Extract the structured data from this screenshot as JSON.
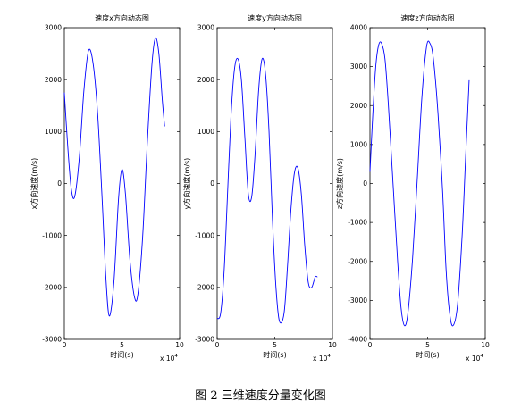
{
  "caption": "图 2  三维速度分量变化图",
  "colors": {
    "line": "#0000ff",
    "axes": "#000000",
    "background": "#ffffff"
  },
  "chart_data": [
    {
      "type": "line",
      "title": "速度x方向动态图",
      "xlabel": "时间(s)",
      "ylabel": "x方向速度(m/s)",
      "x_exponent": "x 10",
      "x_exponent_power": "4",
      "xlim": [
        0,
        10
      ],
      "ylim": [
        -3000,
        3000
      ],
      "xticks": [
        0,
        5,
        10
      ],
      "yticks": [
        -3000,
        -2000,
        -1000,
        0,
        1000,
        2000,
        3000
      ],
      "grid": false,
      "series": [
        {
          "x": [
            0,
            0.3,
            0.6,
            0.9,
            1.3,
            1.7,
            2.1,
            2.5,
            2.9,
            3.3,
            3.6,
            3.9,
            4.3,
            4.7,
            5.0,
            5.3,
            5.7,
            6.1,
            6.4,
            6.8,
            7.2,
            7.6,
            7.9,
            8.2,
            8.5,
            8.7
          ],
          "y": [
            1750,
            700,
            -100,
            -250,
            500,
            1800,
            2560,
            2300,
            1300,
            -400,
            -1800,
            -2550,
            -1900,
            -300,
            270,
            -200,
            -1500,
            -2200,
            -2100,
            -1000,
            800,
            2300,
            2800,
            2500,
            1600,
            1100
          ]
        }
      ]
    },
    {
      "type": "line",
      "title": "速度y方向动态图",
      "xlabel": "时间(s)",
      "ylabel": "y方向速度(m/s)",
      "x_exponent": "x 10",
      "x_exponent_power": "4",
      "xlim": [
        0,
        10
      ],
      "ylim": [
        -3000,
        3000
      ],
      "xticks": [
        0,
        5,
        10
      ],
      "yticks": [
        -3000,
        -2000,
        -1000,
        0,
        1000,
        2000,
        3000
      ],
      "grid": false,
      "series": [
        {
          "x": [
            0,
            0.3,
            0.6,
            0.9,
            1.2,
            1.5,
            1.8,
            2.1,
            2.4,
            2.7,
            3.0,
            3.3,
            3.6,
            3.9,
            4.2,
            4.5,
            4.8,
            5.1,
            5.4,
            5.8,
            6.1,
            6.4,
            6.7,
            7.0,
            7.3,
            7.6,
            7.9,
            8.2,
            8.5,
            8.7
          ],
          "y": [
            -2600,
            -2500,
            -1700,
            -200,
            1300,
            2200,
            2400,
            2000,
            900,
            -200,
            -250,
            600,
            1800,
            2400,
            2100,
            1000,
            -700,
            -2000,
            -2650,
            -2500,
            -1600,
            -500,
            200,
            300,
            -200,
            -1200,
            -1900,
            -2000,
            -1800,
            -1800
          ]
        }
      ]
    },
    {
      "type": "line",
      "title": "速度z方向动态图",
      "xlabel": "时间(s)",
      "ylabel": "z方向速度(m/s)",
      "x_exponent": "x 10",
      "x_exponent_power": "4",
      "xlim": [
        0,
        10
      ],
      "ylim": [
        -4000,
        4000
      ],
      "xticks": [
        0,
        5,
        10
      ],
      "yticks": [
        -4000,
        -3000,
        -2000,
        -1000,
        0,
        1000,
        2000,
        3000,
        4000
      ],
      "grid": false,
      "series": [
        {
          "x": [
            0,
            0.25,
            0.5,
            0.75,
            1.0,
            1.3,
            1.6,
            2.0,
            2.4,
            2.7,
            3.0,
            3.3,
            3.7,
            4.1,
            4.5,
            4.9,
            5.2,
            5.5,
            5.9,
            6.3,
            6.6,
            6.9,
            7.2,
            7.6,
            8.0,
            8.3,
            8.6
          ],
          "y": [
            300,
            1800,
            3000,
            3550,
            3600,
            3200,
            2000,
            0,
            -2000,
            -3200,
            -3650,
            -3300,
            -1900,
            100,
            2200,
            3500,
            3600,
            3200,
            1800,
            -200,
            -2200,
            -3300,
            -3650,
            -3100,
            -1300,
            700,
            2650
          ]
        }
      ]
    }
  ]
}
